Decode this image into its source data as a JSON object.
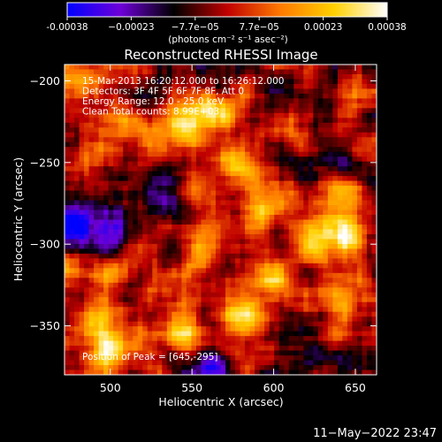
{
  "chart_data": {
    "type": "heatmap",
    "title": "Reconstructed RHESSI Image",
    "xlabel": "Heliocentric X (arcsec)",
    "ylabel": "Heliocentric Y (arcsec)",
    "xlim": [
      472,
      663
    ],
    "ylim": [
      -380,
      -190
    ],
    "x_ticks": [
      500,
      550,
      600,
      650
    ],
    "y_ticks": [
      -200,
      -250,
      -300,
      -350
    ],
    "colorbar": {
      "label": "(photons cm⁻² s⁻¹ asec⁻²)",
      "range": [
        -0.00038,
        0.00038
      ],
      "tick_labels": [
        "-0.00038",
        "−0.00023",
        "−7.7e−05",
        "7.7e−05",
        "0.00023",
        "0.00038"
      ],
      "colormap": [
        "#0000ff",
        "#6e00d8",
        "#000000",
        "#c00000",
        "#ff7a00",
        "#ffd000",
        "#ffffff"
      ]
    },
    "annotations": [
      "15-Mar-2013 16:20:12.000 to 16:26:12.000",
      "Detectors: 3F 4F 5F 6F 7F 8F, Att 0",
      "Energy Range: 12.0 - 25.0 keV",
      "Clean     Total counts: 8.99E+03"
    ],
    "peak_annotation": "Position of Peak = [645,-295]",
    "peak": {
      "x": 645,
      "y": -295
    },
    "hotspots": [
      {
        "x": 548,
        "y": -225,
        "v": 0.00034
      },
      {
        "x": 568,
        "y": -220,
        "v": 0.0003
      },
      {
        "x": 530,
        "y": -235,
        "v": 0.00026
      },
      {
        "x": 505,
        "y": -230,
        "v": 0.00018
      },
      {
        "x": 575,
        "y": -250,
        "v": 0.00022
      },
      {
        "x": 595,
        "y": -275,
        "v": 0.00033
      },
      {
        "x": 625,
        "y": -300,
        "v": 0.00032
      },
      {
        "x": 645,
        "y": -295,
        "v": 0.00038
      },
      {
        "x": 640,
        "y": -270,
        "v": 0.00028
      },
      {
        "x": 560,
        "y": -300,
        "v": 0.00024
      },
      {
        "x": 600,
        "y": -320,
        "v": 0.00026
      },
      {
        "x": 640,
        "y": -335,
        "v": 0.00022
      },
      {
        "x": 500,
        "y": -320,
        "v": 0.00022
      },
      {
        "x": 580,
        "y": -345,
        "v": 0.00035
      },
      {
        "x": 545,
        "y": -355,
        "v": 0.0003
      },
      {
        "x": 500,
        "y": -365,
        "v": 0.00036
      },
      {
        "x": 490,
        "y": -345,
        "v": 0.00024
      },
      {
        "x": 480,
        "y": -200,
        "v": 0.00024
      },
      {
        "x": 655,
        "y": -210,
        "v": 0.00016
      },
      {
        "x": 615,
        "y": -235,
        "v": 0.00014
      }
    ],
    "coldspots": [
      {
        "x": 480,
        "y": -290,
        "v": -0.0003
      },
      {
        "x": 500,
        "y": -295,
        "v": -0.00024
      },
      {
        "x": 530,
        "y": -270,
        "v": -0.00018
      },
      {
        "x": 610,
        "y": -250,
        "v": -0.00015
      },
      {
        "x": 600,
        "y": -200,
        "v": -0.00014
      },
      {
        "x": 660,
        "y": -375,
        "v": -0.00026
      },
      {
        "x": 560,
        "y": -375,
        "v": -0.0002
      },
      {
        "x": 620,
        "y": -370,
        "v": -0.00018
      }
    ]
  },
  "footer": {
    "date": "11−May−2022 23:47"
  }
}
